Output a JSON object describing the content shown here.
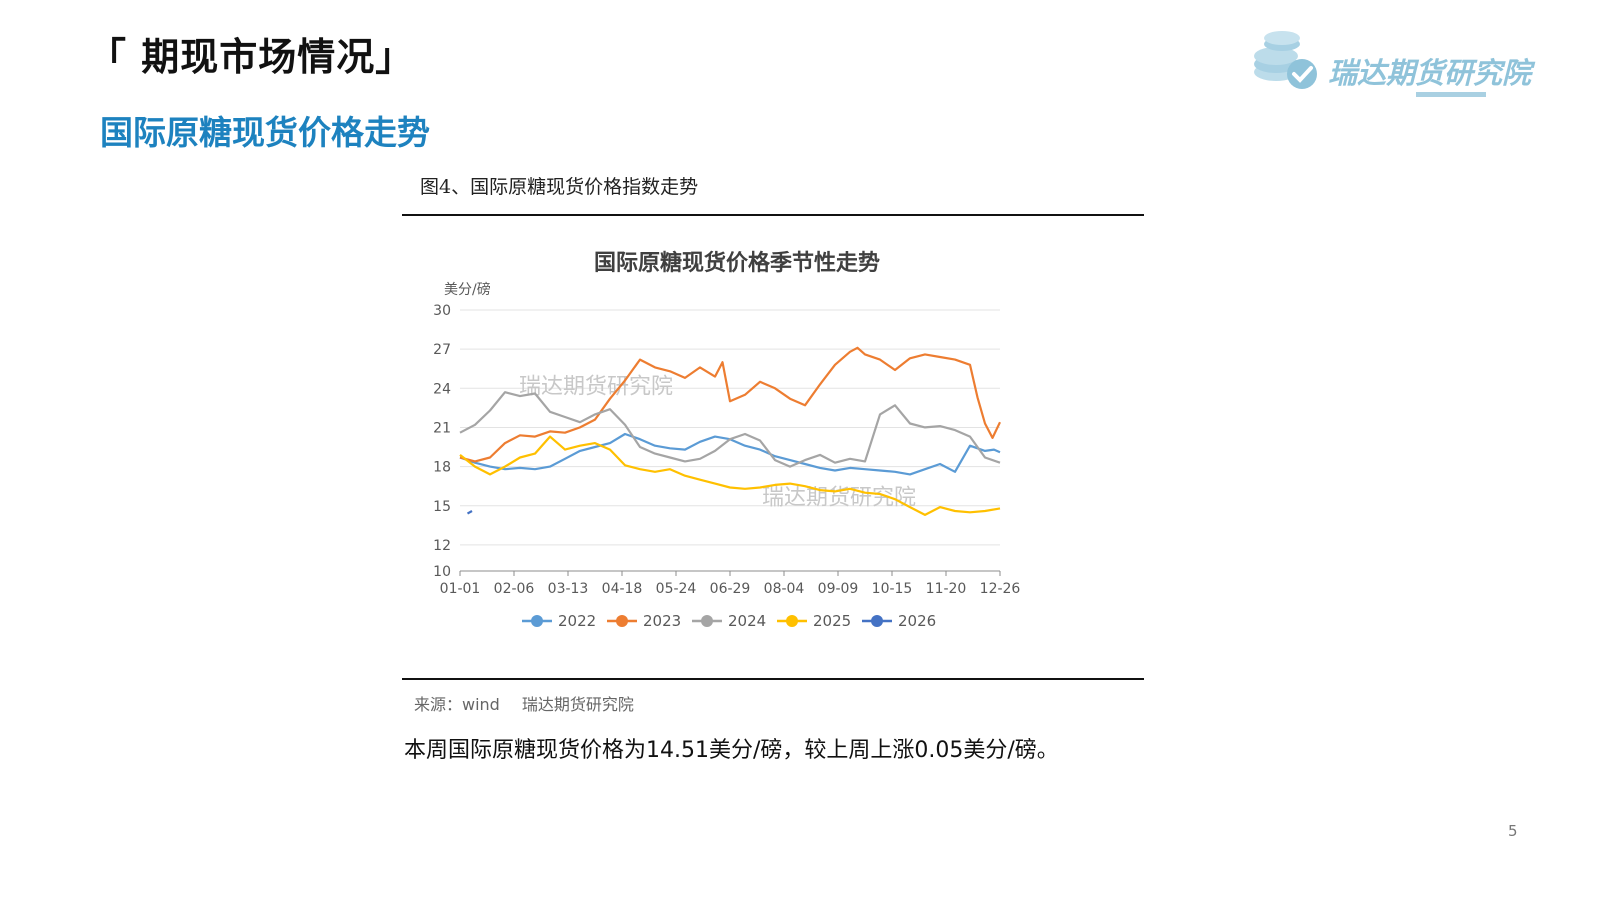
{
  "header": {
    "section_title": "「 期现市场情况」",
    "subtitle": "国际原糖现货价格走势"
  },
  "logo": {
    "text": "瑞达期货研究院"
  },
  "figure": {
    "caption": "图4、国际原糖现货价格指数走势"
  },
  "source": {
    "label": "来源：wind",
    "org": "瑞达期货研究院"
  },
  "summary": "本周国际原糖现货价格为14.51美分/磅，较上周上涨0.05美分/磅。",
  "page_number": "5",
  "chart_data": {
    "type": "line",
    "title": "国际原糖现货价格季节性走势",
    "ylabel": "美分/磅",
    "xlabel": "",
    "watermark": "瑞达期货研究院",
    "x_ticks": [
      "01-01",
      "02-06",
      "03-13",
      "04-18",
      "05-24",
      "06-29",
      "08-04",
      "09-09",
      "10-15",
      "11-20",
      "12-26"
    ],
    "x_range": [
      0,
      360
    ],
    "y_ticks": [
      10,
      12,
      15,
      18,
      21,
      24,
      27,
      30
    ],
    "ylim": [
      10,
      30
    ],
    "grid": true,
    "legend_position": "bottom",
    "series": [
      {
        "name": "2022",
        "color": "#5b9bd5",
        "x": [
          0,
          10,
          20,
          30,
          40,
          50,
          60,
          70,
          80,
          90,
          100,
          110,
          120,
          130,
          140,
          150,
          160,
          170,
          180,
          190,
          200,
          210,
          220,
          230,
          240,
          250,
          260,
          270,
          280,
          290,
          300,
          310,
          320,
          330,
          340,
          350,
          356,
          360
        ],
        "values": [
          18.7,
          18.3,
          18.0,
          17.8,
          17.9,
          17.8,
          18.0,
          18.6,
          19.2,
          19.5,
          19.8,
          20.5,
          20.1,
          19.6,
          19.4,
          19.3,
          19.9,
          20.3,
          20.1,
          19.6,
          19.3,
          18.8,
          18.5,
          18.2,
          17.9,
          17.7,
          17.9,
          17.8,
          17.7,
          17.6,
          17.4,
          17.8,
          18.2,
          17.6,
          19.6,
          19.2,
          19.3,
          19.1
        ]
      },
      {
        "name": "2023",
        "color": "#ed7d31",
        "x": [
          0,
          10,
          20,
          30,
          40,
          50,
          60,
          70,
          80,
          90,
          100,
          110,
          120,
          130,
          140,
          150,
          160,
          170,
          175,
          180,
          190,
          200,
          210,
          220,
          230,
          240,
          250,
          260,
          265,
          270,
          280,
          290,
          300,
          310,
          320,
          330,
          340,
          345,
          350,
          355,
          360
        ],
        "values": [
          18.7,
          18.4,
          18.7,
          19.8,
          20.4,
          20.3,
          20.7,
          20.6,
          21.0,
          21.6,
          23.2,
          24.6,
          26.2,
          25.6,
          25.3,
          24.8,
          25.6,
          24.9,
          26.0,
          23.0,
          23.5,
          24.5,
          24.0,
          23.2,
          22.7,
          24.3,
          25.8,
          26.8,
          27.1,
          26.6,
          26.2,
          25.4,
          26.3,
          26.6,
          26.4,
          26.2,
          25.8,
          23.3,
          21.3,
          20.2,
          21.4
        ]
      },
      {
        "name": "2024",
        "color": "#a5a5a5",
        "x": [
          0,
          10,
          20,
          30,
          40,
          50,
          60,
          70,
          80,
          90,
          100,
          110,
          120,
          130,
          140,
          150,
          160,
          170,
          180,
          190,
          200,
          210,
          220,
          230,
          240,
          250,
          260,
          270,
          280,
          290,
          300,
          310,
          320,
          330,
          340,
          350,
          360
        ],
        "values": [
          20.6,
          21.2,
          22.3,
          23.7,
          23.4,
          23.6,
          22.2,
          21.8,
          21.4,
          22.0,
          22.4,
          21.2,
          19.5,
          19.0,
          18.7,
          18.4,
          18.6,
          19.2,
          20.1,
          20.5,
          20.0,
          18.5,
          18.0,
          18.5,
          18.9,
          18.3,
          18.6,
          18.4,
          22.0,
          22.7,
          21.3,
          21.0,
          21.1,
          20.8,
          20.3,
          18.7,
          18.3
        ]
      },
      {
        "name": "2025",
        "color": "#ffc000",
        "x": [
          0,
          10,
          20,
          30,
          40,
          50,
          60,
          70,
          80,
          90,
          100,
          110,
          120,
          130,
          140,
          150,
          160,
          170,
          180,
          190,
          200,
          210,
          220,
          230,
          240,
          250,
          260,
          270,
          280,
          290,
          300,
          310,
          320,
          330,
          340,
          350,
          360
        ],
        "values": [
          18.9,
          18.0,
          17.4,
          18.0,
          18.7,
          19.0,
          20.3,
          19.3,
          19.6,
          19.8,
          19.3,
          18.1,
          17.8,
          17.6,
          17.8,
          17.3,
          17.0,
          16.7,
          16.4,
          16.3,
          16.4,
          16.6,
          16.7,
          16.5,
          16.2,
          16.1,
          16.3,
          16.0,
          15.9,
          15.5,
          14.9,
          14.3,
          14.9,
          14.6,
          14.5,
          14.6,
          14.8
        ]
      },
      {
        "name": "2026",
        "color": "#4472c4",
        "x": [
          5,
          8
        ],
        "values": [
          14.4,
          14.6
        ]
      }
    ]
  }
}
